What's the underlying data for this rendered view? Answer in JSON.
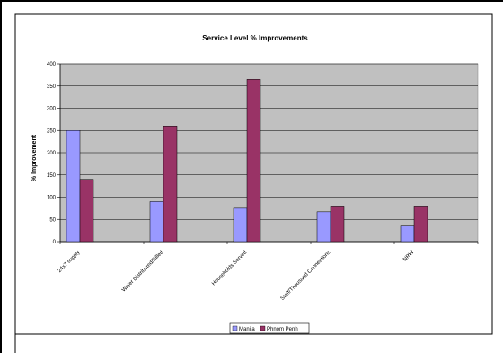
{
  "chart_data": {
    "type": "bar",
    "title": "Service Level % Improvements",
    "ylabel": "% Improvement",
    "xlabel": "",
    "categories": [
      "24x7 supply",
      "Water Distributed/Billed",
      "Households Served",
      "Staff/Thousand Connections",
      "NRW"
    ],
    "series": [
      {
        "name": "Manila",
        "values": [
          250,
          90,
          75,
          67,
          35
        ],
        "color": "#9999ff"
      },
      {
        "name": "Phnom Penh",
        "values": [
          140,
          260,
          365,
          80,
          80
        ],
        "color": "#993366"
      }
    ],
    "ylim": [
      0,
      400
    ],
    "yticks": [
      0,
      50,
      100,
      150,
      200,
      250,
      300,
      350,
      400
    ],
    "grid": true,
    "plot_background": "#c0c0c0",
    "legend_position": "bottom-center"
  }
}
